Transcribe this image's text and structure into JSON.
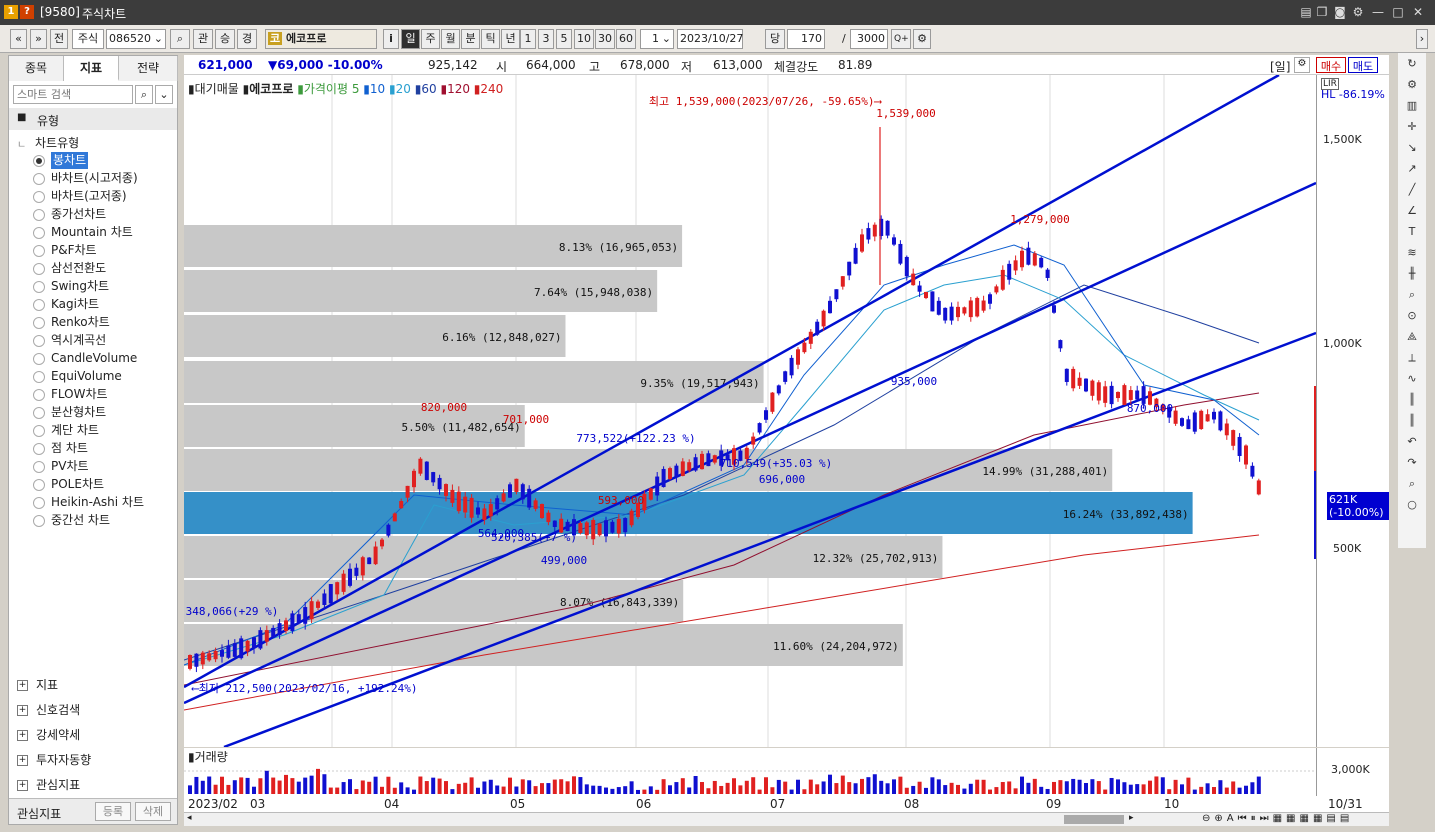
{
  "window": {
    "id": "[9580]",
    "title": "주식차트"
  },
  "toolbar": {
    "prev": "«",
    "down": "»",
    "front": "전",
    "market": "주식",
    "code": "086520",
    "search": "⌕",
    "gwan": "관",
    "seung": "승",
    "gyeong": "경",
    "stock_name": "에코프로",
    "info": "i",
    "periods": [
      "일",
      "주",
      "월",
      "분",
      "틱",
      "년"
    ],
    "nums": [
      "1",
      "3",
      "5",
      "10",
      "30",
      "60"
    ],
    "unit": "1",
    "date": "2023/10/27",
    "dang": "당",
    "count": "170",
    "slash": "/",
    "total": "3000",
    "zoom_icon": "Q+",
    "gear": "⚙",
    "expand": "›"
  },
  "left": {
    "tabs": [
      "종목",
      "지표",
      "전략"
    ],
    "search_placeholder": "스마트 검색",
    "group": "유형",
    "tree_root": "차트유형",
    "types": [
      "봉차트",
      "바차트(시고저종)",
      "바차트(고저종)",
      "종가선차트",
      "Mountain 차트",
      "P&F차트",
      "삼선전환도",
      "Swing차트",
      "Kagi차트",
      "Renko차트",
      "역시계곡선",
      "CandleVolume",
      "EquiVolume",
      "FLOW차트",
      "분산형차트",
      "계단 차트",
      "점 차트",
      "PV차트",
      "POLE차트",
      "Heikin-Ashi 차트",
      "중간선 차트"
    ],
    "selected": "봉차트",
    "bottom": [
      "지표",
      "신호검색",
      "강세약세",
      "투자자동향",
      "관심지표"
    ],
    "register": "등록",
    "delete": "삭제"
  },
  "info": {
    "price": "621,000",
    "change": "▼69,000 -10.00%",
    "volume": "925,142",
    "open_label": "시",
    "open": "664,000",
    "high_label": "고",
    "high": "678,000",
    "low_label": "저",
    "low": "613,000",
    "strength_label": "체결강도",
    "strength": "81.89",
    "period_tag": "[일]",
    "buy": "매수",
    "sell": "매도"
  },
  "chart": {
    "legend_prefix": "대기매물",
    "stock": "에코프로",
    "ma_label": "가격이평",
    "ma": [
      "5",
      "10",
      "20",
      "60",
      "120",
      "240"
    ],
    "ma_colors": [
      "#3c9a3c",
      "#1060d0",
      "#2aa0d0",
      "#2040a0",
      "#a01030",
      "#d02020"
    ],
    "hl": "HL -86.19%",
    "max_text": "최고 1,539,000(2023/07/26, -59.65%)",
    "min_text": "최저 212,500(2023/02/16, +192.24%)",
    "current_tag": [
      "621K",
      "(-10.00%)"
    ],
    "annotations": [
      {
        "t": "1,539,000",
        "c": "#c00"
      },
      {
        "t": "1,279,000",
        "c": "#c00"
      },
      {
        "t": "935,000",
        "c": "#00c"
      },
      {
        "t": "870,000",
        "c": "#00c"
      },
      {
        "t": "820,000",
        "c": "#c00"
      },
      {
        "t": "701,000",
        "c": "#c00"
      },
      {
        "t": "593,000",
        "c": "#c00"
      },
      {
        "t": "564,000",
        "c": "#00c"
      },
      {
        "t": "499,000",
        "c": "#00c"
      },
      {
        "t": "696,000",
        "c": "#00c"
      },
      {
        "t": "773,522(+122.23 %)",
        "c": "#00c"
      },
      {
        "t": "710,549(+35.03 %)",
        "c": "#00c"
      },
      {
        "t": "520,385(+7 %)",
        "c": "#00c"
      },
      {
        "t": "348,066(+29 %)",
        "c": "#00c"
      }
    ],
    "y_ticks": [
      "1,500K",
      "1,000K",
      "500K"
    ],
    "vol_tick": "3,000K",
    "vol_label": "거래량",
    "x_ticks": [
      "2023/02",
      "03",
      "04",
      "05",
      "06",
      "07",
      "08",
      "09",
      "10"
    ],
    "x_end": "10/31"
  },
  "chart_data": {
    "type": "candlestick_volume_profile",
    "stock": "에코프로",
    "code": "086520",
    "price_markers": {
      "max": 1539000,
      "min": 212500,
      "current": 621000
    },
    "volume_profile": [
      {
        "pct": "8.13%",
        "vol": "16,965,053",
        "w": 0.44
      },
      {
        "pct": "7.64%",
        "vol": "15,948,038",
        "w": 0.418
      },
      {
        "pct": "6.16%",
        "vol": "12,848,027",
        "w": 0.337
      },
      {
        "pct": "9.35%",
        "vol": "19,517,943",
        "w": 0.512
      },
      {
        "pct": "5.50%",
        "vol": "11,482,654",
        "w": 0.301
      },
      {
        "pct": "14.99%",
        "vol": "31,288,401",
        "w": 0.82
      },
      {
        "pct": "16.24%",
        "vol": "33,892,438",
        "w": 0.891,
        "highlight": true
      },
      {
        "pct": "12.32%",
        "vol": "25,702,913",
        "w": 0.67
      },
      {
        "pct": "8.07%",
        "vol": "16,843,339",
        "w": 0.441
      },
      {
        "pct": "11.60%",
        "vol": "24,204,972",
        "w": 0.635
      }
    ]
  }
}
